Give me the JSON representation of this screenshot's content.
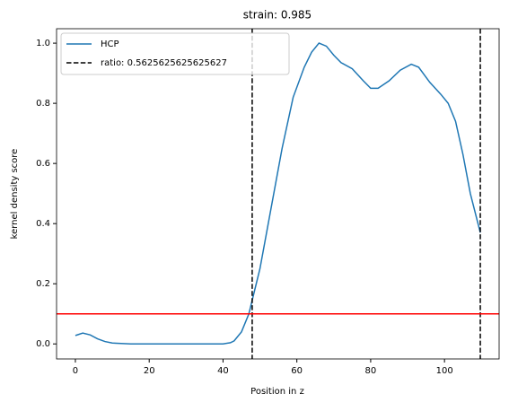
{
  "chart_data": {
    "type": "line",
    "title": "strain: 0.985",
    "xlabel": "Position in z",
    "ylabel": "kernel density score",
    "series": [
      {
        "name": "HCP",
        "color": "#1f77b4",
        "x": [
          0,
          2,
          4,
          6,
          8,
          10,
          15,
          20,
          30,
          40,
          42,
          43,
          45,
          47,
          50,
          53,
          56,
          59,
          62,
          64,
          66,
          68,
          70,
          72,
          75,
          78,
          80,
          82,
          85,
          88,
          91,
          93,
          96,
          99,
          101,
          103,
          105,
          107,
          109.7
        ],
        "values": [
          0.028,
          0.036,
          0.03,
          0.017,
          0.008,
          0.003,
          0.0,
          0.0,
          0.0,
          0.0,
          0.004,
          0.01,
          0.04,
          0.1,
          0.25,
          0.45,
          0.65,
          0.82,
          0.92,
          0.97,
          1.0,
          0.99,
          0.96,
          0.935,
          0.915,
          0.875,
          0.85,
          0.85,
          0.875,
          0.91,
          0.93,
          0.92,
          0.87,
          0.83,
          0.8,
          0.74,
          0.63,
          0.5,
          0.37
        ]
      }
    ],
    "vlines": {
      "name": "ratio: 0.5625625625625627",
      "color": "#000000",
      "values": [
        47.9,
        109.7
      ]
    },
    "hline": {
      "value": 0.1,
      "color": "#ff0000"
    },
    "xlim": [
      -5.1,
      114.8
    ],
    "xticks": [
      0,
      20,
      40,
      60,
      80,
      100
    ],
    "ylim": [
      -0.05,
      1.048
    ],
    "yticks": [
      {
        "value": 0,
        "label": "0.0"
      },
      {
        "value": 0.2,
        "label": "0.2"
      },
      {
        "value": 0.4,
        "label": "0.4"
      },
      {
        "value": 0.6,
        "label": "0.6"
      },
      {
        "value": 0.8,
        "label": "0.8"
      },
      {
        "value": 1.0,
        "label": "1.0"
      }
    ],
    "legend": "upper left"
  }
}
